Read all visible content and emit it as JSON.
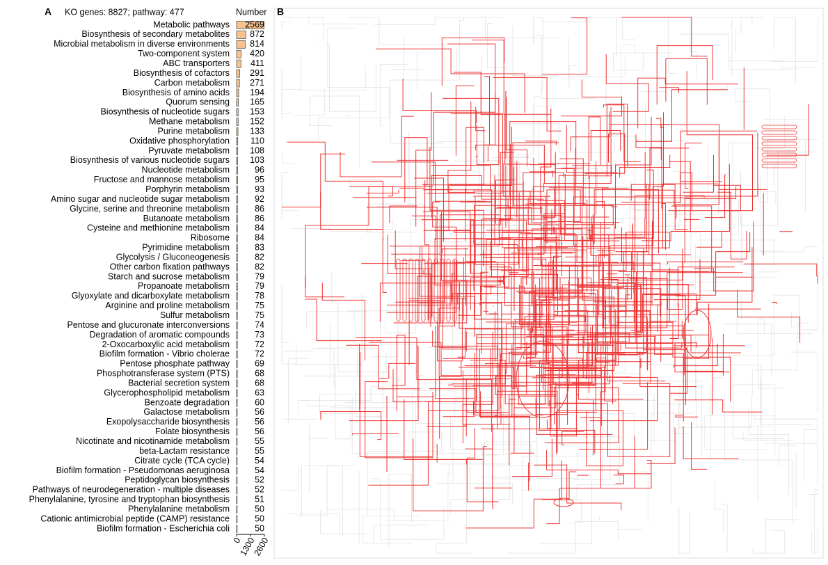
{
  "panel_labels": [
    "A",
    "B"
  ],
  "chart_data": {
    "type": "bar",
    "orientation": "horizontal",
    "title": "KO genes: 8827; pathway: 477",
    "value_header": "Number",
    "color": "#f6c28f",
    "categories": [
      "Metabolic pathways",
      "Biosynthesis of secondary metabolites",
      "Microbial metabolism in diverse environments",
      "Two-component system",
      "ABC transporters",
      "Biosynthesis of cofactors",
      "Carbon metabolism",
      "Biosynthesis of amino acids",
      "Quorum sensing",
      "Biosynthesis of nucleotide sugars",
      "Methane metabolism",
      "Purine metabolism",
      "Oxidative phosphorylation",
      "Pyruvate metabolism",
      "Biosynthesis of various nucleotide sugars",
      "Nucleotide metabolism",
      "Fructose and mannose metabolism",
      "Porphyrin metabolism",
      "Amino sugar and nucleotide sugar metabolism",
      "Glycine, serine and threonine metabolism",
      "Butanoate metabolism",
      "Cysteine and methionine metabolism",
      "Ribosome",
      "Pyrimidine metabolism",
      "Glycolysis / Gluconeogenesis",
      "Other carbon fixation pathways",
      "Starch and sucrose metabolism",
      "Propanoate metabolism",
      "Glyoxylate and dicarboxylate metabolism",
      "Arginine and proline metabolism",
      "Sulfur metabolism",
      "Pentose and glucuronate interconversions",
      "Degradation of aromatic compounds",
      "2-Oxocarboxylic acid metabolism",
      "Biofilm formation - Vibrio cholerae",
      "Pentose phosphate pathway",
      "Phosphotransferase system (PTS)",
      "Bacterial secretion system",
      "Glycerophospholipid metabolism",
      "Benzoate degradation",
      "Galactose metabolism",
      "Exopolysaccharide biosynthesis",
      "Folate biosynthesis",
      "Nicotinate and nicotinamide metabolism",
      "beta-Lactam resistance",
      "Citrate cycle (TCA cycle)",
      "Biofilm formation - Pseudomonas aeruginosa",
      "Peptidoglycan biosynthesis",
      "Pathways of neurodegeneration - multiple diseases",
      "Phenylalanine, tyrosine and tryptophan biosynthesis",
      "Phenylalanine metabolism",
      "Cationic antimicrobial peptide (CAMP) resistance",
      "Biofilm formation - Escherichia coli"
    ],
    "values": [
      2569,
      872,
      814,
      420,
      411,
      291,
      271,
      194,
      165,
      153,
      152,
      133,
      110,
      108,
      103,
      96,
      95,
      93,
      92,
      86,
      86,
      84,
      84,
      83,
      82,
      82,
      79,
      79,
      78,
      75,
      75,
      74,
      73,
      72,
      72,
      69,
      68,
      68,
      63,
      60,
      56,
      56,
      56,
      55,
      55,
      54,
      54,
      52,
      52,
      51,
      50,
      50,
      50
    ],
    "xlim": [
      0,
      2600
    ],
    "xticks": [
      0,
      1300,
      2600
    ]
  }
}
